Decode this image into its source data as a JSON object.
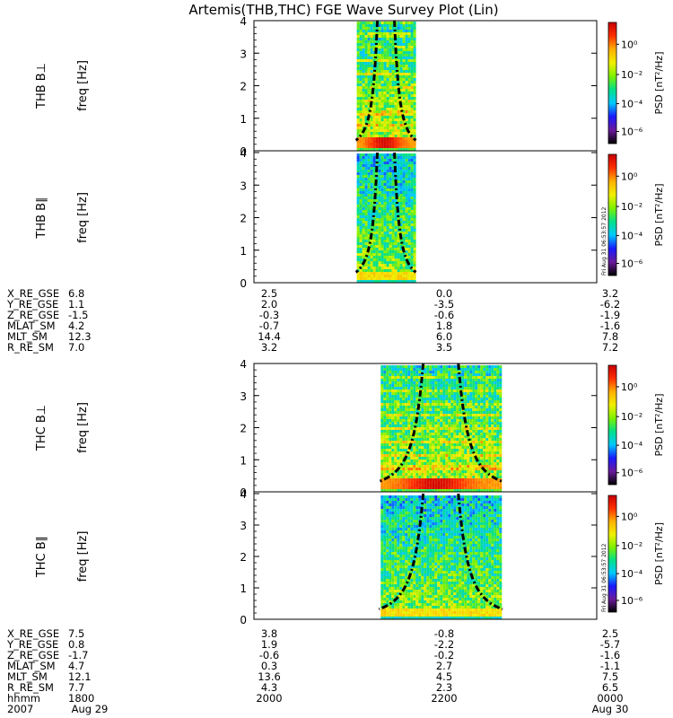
{
  "title": "Artemis(THB,THC) FGE Wave Survey Plot (Lin)",
  "colors": {
    "background": "#ffffff",
    "axes": "#000000",
    "curve": "#000000",
    "colorbar_stops": [
      "#000000",
      "#6a1a9a",
      "#1a1aff",
      "#00c8ff",
      "#00e08a",
      "#7ef000",
      "#f0f000",
      "#ffb000",
      "#ff3000",
      "#c80000"
    ]
  },
  "colorbar": {
    "label": "PSD [nT²/Hz]",
    "ticks": [
      "10⁰",
      "10⁻²",
      "10⁻⁴",
      "10⁻⁶"
    ]
  },
  "timestamp_label": "Fri Aug 31 06:53:57 2012",
  "chart_data": [
    {
      "type": "heatmap",
      "panel": "THB B⊥",
      "ylabel": "freq [Hz]",
      "probe_label": "THB B⊥",
      "ylim": [
        0,
        4
      ],
      "yticks": [
        "0",
        "1",
        "2",
        "3",
        "4"
      ],
      "data_window": [
        0.3,
        0.47
      ],
      "dominant_band": "0.2-0.4 Hz",
      "curve_style": "dash-dot"
    },
    {
      "type": "heatmap",
      "panel": "THB B∥",
      "ylabel": "freq [Hz]",
      "probe_label": "THB B∥",
      "ylim": [
        0,
        4
      ],
      "yticks": [
        "0",
        "1",
        "2",
        "3",
        "4"
      ],
      "data_window": [
        0.3,
        0.47
      ],
      "curve_style": "dash-dot"
    },
    {
      "type": "heatmap",
      "panel": "THC B⊥",
      "ylabel": "freq [Hz]",
      "probe_label": "THC B⊥",
      "ylim": [
        0,
        4
      ],
      "yticks": [
        "0",
        "1",
        "2",
        "3",
        "4"
      ],
      "data_window": [
        0.37,
        0.72
      ],
      "dominant_band": "0.2-0.4 Hz",
      "curve_style": "dash-dot"
    },
    {
      "type": "heatmap",
      "panel": "THC B∥",
      "ylabel": "freq [Hz]",
      "probe_label": "THC B∥",
      "ylim": [
        0,
        4
      ],
      "yticks": [
        "0",
        "1",
        "2",
        "3",
        "4"
      ],
      "data_window": [
        0.37,
        0.72
      ],
      "curve_style": "dash-dot"
    }
  ],
  "ephemeris_b": {
    "rows": [
      {
        "label": "X_RE_GSE",
        "v": [
          "6.8",
          "2.5",
          "0.0",
          "3.2"
        ]
      },
      {
        "label": "Y_RE_GSE",
        "v": [
          "1.1",
          "2.0",
          "-3.5",
          "-6.2"
        ]
      },
      {
        "label": "Z_RE_GSE",
        "v": [
          "-1.5",
          "-0.3",
          "-0.6",
          "-1.9"
        ]
      },
      {
        "label": "MLAT_SM",
        "v": [
          "4.2",
          "-0.7",
          "1.8",
          "-1.6"
        ]
      },
      {
        "label": "MLT_SM",
        "v": [
          "12.3",
          "14.4",
          "6.0",
          "7.8"
        ]
      },
      {
        "label": "R_RE_SM",
        "v": [
          "7.0",
          "3.2",
          "3.5",
          "7.2"
        ]
      }
    ]
  },
  "ephemeris_c": {
    "rows": [
      {
        "label": "X_RE_GSE",
        "v": [
          "7.5",
          "3.8",
          "-0.8",
          "2.5"
        ]
      },
      {
        "label": "Y_RE_GSE",
        "v": [
          "0.8",
          "1.9",
          "-2.2",
          "-5.7"
        ]
      },
      {
        "label": "Z_RE_GSE",
        "v": [
          "-1.7",
          "-0.6",
          "-0.2",
          "-1.6"
        ]
      },
      {
        "label": "MLAT_SM",
        "v": [
          "4.7",
          "0.3",
          "2.7",
          "-1.1"
        ]
      },
      {
        "label": "MLT_SM",
        "v": [
          "12.1",
          "13.6",
          "4.5",
          "7.5"
        ]
      },
      {
        "label": "R_RE_SM",
        "v": [
          "7.7",
          "4.3",
          "2.3",
          "6.5"
        ]
      },
      {
        "label": "hhmm",
        "v": [
          "1800",
          "2000",
          "2200",
          "0000"
        ]
      }
    ]
  },
  "date_row": {
    "year": "2007",
    "start": "Aug 29",
    "end": "Aug 30"
  }
}
